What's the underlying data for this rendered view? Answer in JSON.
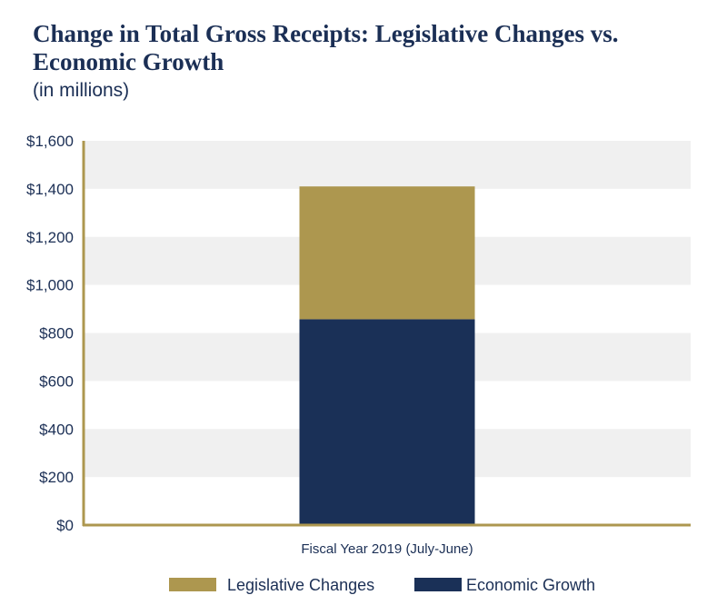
{
  "chart_data": {
    "type": "bar",
    "stacked": true,
    "title": "Change in Total Gross Receipts: Legislative Changes vs. Economic Growth",
    "subtitle": "(in millions)",
    "categories": [
      "Fiscal Year 2019 (July-June)"
    ],
    "series": [
      {
        "name": "Economic Growth",
        "color": "#1a3057",
        "values": [
          857
        ]
      },
      {
        "name": "Legislative Changes",
        "color": "#ad974f",
        "values": [
          553
        ]
      }
    ],
    "legend_order": [
      "Legislative Changes",
      "Economic Growth"
    ],
    "legend_position": "bottom",
    "xlabel": "",
    "ylabel": "",
    "ylim": [
      0,
      1600
    ],
    "yticks": [
      0,
      200,
      400,
      600,
      800,
      1000,
      1200,
      1400,
      1600
    ],
    "ytick_labels": [
      "$0",
      "$200",
      "$400",
      "$600",
      "$800",
      "$1,000",
      "$1,200",
      "$1,400",
      "$1,600"
    ],
    "grid": "alternating horizontal bands",
    "band_color": "#f0f0f0",
    "axis_color": "#ad974f"
  }
}
